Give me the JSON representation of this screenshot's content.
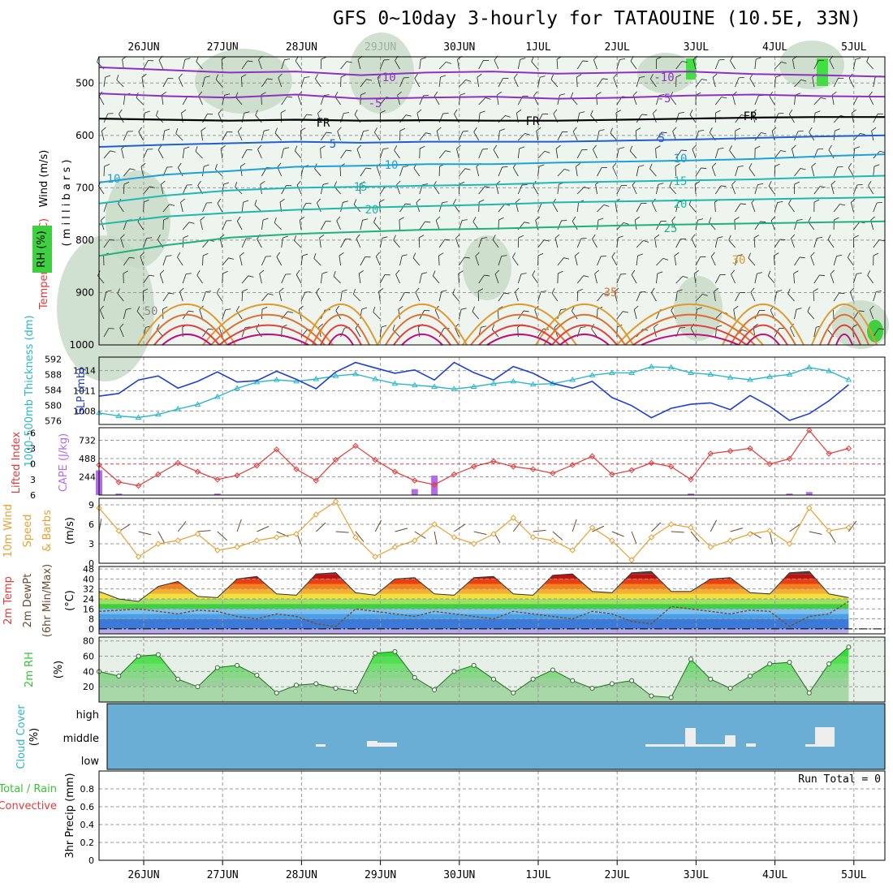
{
  "title": "GFS 0~10day 3-hourly for TATAOUINE (10.5E, 33N)",
  "run_total_label": "Run Total = 0",
  "dates": [
    "26JUN",
    "27JUN",
    "28JUN",
    "29JUN",
    "30JUN",
    "1JUL",
    "2JUL",
    "3JUL",
    "4JUL",
    "5JUL"
  ],
  "colors": {
    "slp": "#1f3fd0",
    "thickness": "#2ab8c8",
    "lifted": "#e03a3a",
    "cape": "#b36be8",
    "wind": "#e8a030",
    "rh": "#35c435",
    "cloud_bg": "#6aaed6",
    "cloud_fill": "#eeeeee",
    "dewpt": "#7a5030"
  },
  "chart_data": [
    {
      "type": "line",
      "panel": "upper-air",
      "ylabel_parts": [
        "Wind (m/s)",
        "Temperature (°C)",
        "RH (%)",
        "( m i l l i b a r s )"
      ],
      "y_ticks": [
        500,
        600,
        700,
        800,
        900,
        1000
      ],
      "ylim": [
        1000,
        450
      ],
      "contour_labels": [
        "-10",
        "-5",
        "FR",
        "5",
        "10",
        "15",
        "20",
        "25",
        "30",
        "35",
        "50"
      ],
      "temperature_levels": [
        {
          "label": "-10",
          "p": [
            470,
            475,
            480,
            478,
            485,
            480,
            478,
            482,
            480,
            478,
            483,
            485,
            488
          ]
        },
        {
          "label": "-5",
          "p": [
            520,
            525,
            528,
            522,
            530,
            528,
            526,
            530,
            528,
            524,
            522,
            525,
            526
          ]
        },
        {
          "label": "FR",
          "p": [
            568,
            570,
            572,
            570,
            572,
            571,
            572,
            572,
            570,
            568,
            566,
            565,
            565
          ]
        },
        {
          "label": "5",
          "p": [
            622,
            618,
            615,
            612,
            614,
            612,
            612,
            612,
            610,
            608,
            605,
            602,
            600
          ]
        },
        {
          "label": "10",
          "p": [
            690,
            675,
            668,
            660,
            658,
            655,
            655,
            652,
            650,
            648,
            645,
            640,
            636
          ]
        },
        {
          "label": "15",
          "p": [
            730,
            715,
            705,
            700,
            698,
            696,
            694,
            690,
            688,
            686,
            684,
            680,
            677
          ]
        },
        {
          "label": "20",
          "p": [
            770,
            755,
            748,
            742,
            738,
            735,
            732,
            728,
            726,
            724,
            722,
            720,
            718
          ]
        },
        {
          "label": "25",
          "p": [
            830,
            810,
            795,
            788,
            784,
            780,
            778,
            775,
            772,
            770,
            768,
            766,
            764
          ]
        }
      ]
    },
    {
      "type": "line",
      "panel": "slp-thickness",
      "ylabel_left": "1000-500mb Thickness (dm)",
      "ylabel_right": "SLP (mb)",
      "thickness_ticks": [
        592,
        588,
        584,
        580,
        576
      ],
      "slp_ticks": [
        1014,
        1011,
        1008
      ],
      "x": [
        "25JUN18",
        "26JUN00",
        "26JUN06",
        "26JUN12",
        "26JUN18",
        "27JUN00",
        "27JUN06",
        "27JUN12",
        "27JUN18",
        "28JUN00",
        "28JUN06",
        "28JUN12",
        "28JUN18",
        "29JUN00",
        "29JUN06",
        "29JUN12",
        "29JUN18",
        "30JUN00",
        "30JUN06",
        "30JUN12",
        "30JUN18",
        "1JUL00",
        "1JUL06",
        "1JUL12",
        "1JUL18",
        "2JUL00",
        "2JUL06",
        "2JUL12",
        "2JUL18",
        "3JUL00",
        "3JUL06",
        "3JUL12",
        "3JUL18",
        "4JUL00",
        "4JUL06",
        "4JUL12",
        "4JUL18",
        "5JUL00",
        "5JUL06"
      ],
      "series": [
        {
          "name": "SLP",
          "axis": "slp",
          "values": [
            1010.2,
            1010.6,
            1012.6,
            1013.2,
            1011.4,
            1012.4,
            1013.8,
            1012.3,
            1012.5,
            1013.9,
            1012.7,
            1011.3,
            1013.8,
            1015.2,
            1014.4,
            1013.6,
            1014.1,
            1012.6,
            1015.2,
            1013.7,
            1012.6,
            1014.6,
            1013.6,
            1012.1,
            1011.4,
            1012.4,
            1010.0,
            1008.8,
            1007.0,
            1008.4,
            1009.0,
            1009.2,
            1008.2,
            1010.3,
            1008.7,
            1006.6,
            1007.6,
            1009.5,
            1011.9
          ]
        },
        {
          "name": "Thickness",
          "axis": "thickness",
          "values": [
            578.0,
            577.2,
            576.8,
            577.6,
            579.0,
            580.2,
            582.2,
            584.4,
            586.0,
            586.6,
            586.2,
            586.8,
            587.6,
            588.1,
            586.8,
            585.6,
            585.2,
            584.8,
            584.2,
            584.8,
            585.6,
            586.2,
            585.4,
            585.6,
            586.6,
            587.8,
            588.4,
            588.4,
            590.0,
            589.8,
            588.4,
            588.0,
            587.2,
            586.6,
            587.4,
            588.0,
            589.8,
            588.9,
            586.6
          ]
        }
      ]
    },
    {
      "type": "bar",
      "panel": "lifted-cape",
      "ylabel_left": "Lifted Index",
      "ylabel_right": "CAPE (J/kg)",
      "li_ticks": [
        "-6",
        "-3",
        "0",
        "3",
        "6"
      ],
      "cape_ticks": [
        732,
        488,
        244
      ],
      "x": [
        "25JUN18",
        "26JUN00",
        "26JUN06",
        "26JUN12",
        "26JUN18",
        "27JUN00",
        "27JUN06",
        "27JUN12",
        "27JUN18",
        "28JUN00",
        "28JUN06",
        "28JUN12",
        "28JUN18",
        "29JUN00",
        "29JUN06",
        "29JUN12",
        "29JUN18",
        "30JUN00",
        "30JUN06",
        "30JUN12",
        "30JUN18",
        "1JUL00",
        "1JUL06",
        "1JUL12",
        "1JUL18",
        "2JUL00",
        "2JUL06",
        "2JUL12",
        "2JUL18",
        "3JUL00",
        "3JUL06",
        "3JUL12",
        "3JUL18",
        "4JUL00",
        "4JUL06",
        "4JUL12",
        "4JUL18",
        "5JUL00",
        "5JUL06"
      ],
      "series": [
        {
          "name": "Lifted Index",
          "values": [
            0.2,
            3.5,
            4.2,
            2.0,
            -0.2,
            1.5,
            3.0,
            2.2,
            0.3,
            -2.8,
            1.0,
            3.2,
            -0.8,
            -3.5,
            -0.8,
            1.5,
            3.2,
            4.0,
            2.0,
            0.5,
            -0.5,
            0.5,
            1.0,
            1.8,
            0.2,
            -1.5,
            2.0,
            1.2,
            -0.2,
            0.5,
            3.0,
            -2.0,
            -2.5,
            -3.0,
            0.0,
            -1.0,
            -6.5,
            -2.0,
            -3.0
          ]
        },
        {
          "name": "CAPE",
          "values": [
            330,
            20,
            0,
            0,
            0,
            0,
            20,
            0,
            0,
            0,
            0,
            0,
            0,
            0,
            0,
            0,
            80,
            260,
            0,
            0,
            0,
            0,
            0,
            0,
            0,
            0,
            0,
            0,
            0,
            0,
            20,
            0,
            0,
            0,
            0,
            20,
            40,
            0,
            0
          ]
        }
      ]
    },
    {
      "type": "line",
      "panel": "10m-wind",
      "ylabel": "10m Wind Speed (m/s) & Barbs",
      "y_ticks": [
        0,
        3,
        6,
        9
      ],
      "ylim": [
        0,
        10
      ],
      "x": [
        "25JUN18",
        "26JUN00",
        "26JUN06",
        "26JUN12",
        "26JUN18",
        "27JUN00",
        "27JUN06",
        "27JUN12",
        "27JUN18",
        "28JUN00",
        "28JUN06",
        "28JUN12",
        "28JUN18",
        "29JUN00",
        "29JUN06",
        "29JUN12",
        "29JUN18",
        "30JUN00",
        "30JUN06",
        "30JUN12",
        "30JUN18",
        "1JUL00",
        "1JUL06",
        "1JUL12",
        "1JUL18",
        "2JUL00",
        "2JUL06",
        "2JUL12",
        "2JUL18",
        "3JUL00",
        "3JUL06",
        "3JUL12",
        "3JUL18",
        "4JUL00",
        "4JUL06",
        "4JUL12",
        "4JUL18",
        "5JUL00",
        "5JUL06"
      ],
      "series": [
        {
          "name": "10m Wind Speed",
          "values": [
            8.5,
            5.0,
            1.0,
            3.0,
            3.5,
            4.5,
            2.0,
            2.5,
            3.5,
            4.0,
            4.5,
            7.5,
            9.5,
            4.0,
            1.0,
            2.5,
            3.5,
            6.0,
            4.0,
            3.0,
            4.5,
            7.0,
            4.0,
            3.5,
            2.0,
            5.5,
            3.5,
            0.5,
            4.0,
            6.0,
            5.5,
            2.5,
            3.5,
            4.5,
            5.0,
            3.0,
            8.5,
            5.0,
            5.5
          ]
        }
      ]
    },
    {
      "type": "area",
      "panel": "2m-temp",
      "ylabel": "2m Temp 2m DewPt (6hr Min/Max) (°C)",
      "y_ticks": [
        0,
        8,
        16,
        24,
        32,
        40,
        48
      ],
      "ylim": [
        -4,
        50
      ],
      "x": [
        "25JUN18",
        "26JUN00",
        "26JUN06",
        "26JUN12",
        "26JUN18",
        "27JUN00",
        "27JUN06",
        "27JUN12",
        "27JUN18",
        "28JUN00",
        "28JUN06",
        "28JUN12",
        "28JUN18",
        "29JUN00",
        "29JUN06",
        "29JUN12",
        "29JUN18",
        "30JUN00",
        "30JUN06",
        "30JUN12",
        "30JUN18",
        "1JUL00",
        "1JUL06",
        "1JUL12",
        "1JUL18",
        "2JUL00",
        "2JUL06",
        "2JUL12",
        "2JUL18",
        "3JUL00",
        "3JUL06",
        "3JUL12",
        "3JUL18",
        "4JUL00",
        "4JUL06",
        "4JUL12",
        "4JUL18",
        "5JUL00",
        "5JUL06"
      ],
      "series": [
        {
          "name": "2m Temp",
          "values": [
            30,
            24,
            22,
            34,
            38,
            26,
            25,
            40,
            42,
            28,
            27,
            44,
            45,
            29,
            27,
            40,
            41,
            28,
            27,
            41,
            42,
            28,
            27,
            43,
            44,
            30,
            29,
            45,
            46,
            30,
            30,
            40,
            41,
            29,
            28,
            45,
            46,
            28,
            25
          ]
        },
        {
          "name": "2m DewPt",
          "values": [
            14,
            15,
            16,
            14,
            12,
            15,
            14,
            10,
            8,
            12,
            10,
            4,
            2,
            16,
            14,
            12,
            10,
            14,
            12,
            10,
            8,
            14,
            12,
            10,
            8,
            14,
            12,
            6,
            4,
            18,
            16,
            14,
            12,
            15,
            14,
            2,
            10,
            12,
            22
          ]
        }
      ]
    },
    {
      "type": "area",
      "panel": "2m-rh",
      "ylabel": "2m RH (%)",
      "y_ticks": [
        20,
        40,
        60,
        80
      ],
      "ylim": [
        0,
        80
      ],
      "x": [
        "25JUN18",
        "26JUN00",
        "26JUN06",
        "26JUN12",
        "26JUN18",
        "27JUN00",
        "27JUN06",
        "27JUN12",
        "27JUN18",
        "28JUN00",
        "28JUN06",
        "28JUN12",
        "28JUN18",
        "29JUN00",
        "29JUN06",
        "29JUN12",
        "29JUN18",
        "30JUN00",
        "30JUN06",
        "30JUN12",
        "30JUN18",
        "1JUL00",
        "1JUL06",
        "1JUL12",
        "1JUL18",
        "2JUL00",
        "2JUL06",
        "2JUL12",
        "2JUL18",
        "3JUL00",
        "3JUL06",
        "3JUL12",
        "3JUL18",
        "4JUL00",
        "4JUL06",
        "4JUL12",
        "4JUL18",
        "5JUL00",
        "5JUL06"
      ],
      "series": [
        {
          "name": "2m RH",
          "values": [
            40,
            34,
            60,
            62,
            30,
            20,
            45,
            48,
            35,
            12,
            22,
            24,
            18,
            14,
            64,
            66,
            32,
            16,
            40,
            48,
            30,
            12,
            30,
            42,
            28,
            18,
            24,
            28,
            8,
            6,
            56,
            30,
            18,
            34,
            50,
            52,
            12,
            50,
            72
          ]
        }
      ]
    },
    {
      "type": "bar",
      "panel": "cloud-cover",
      "ylabel": "Cloud Cover (%)",
      "levels": [
        "high",
        "middle",
        "low"
      ]
    },
    {
      "type": "bar",
      "panel": "precip",
      "ylabel_left": "Total / Rain",
      "ylabel_left2": "Convective",
      "ylabel": "3hr Precip (mm)",
      "y_ticks": [
        "0",
        "0.2",
        "0.4",
        "0.6",
        "0.8"
      ],
      "ylim": [
        0,
        1
      ]
    }
  ]
}
